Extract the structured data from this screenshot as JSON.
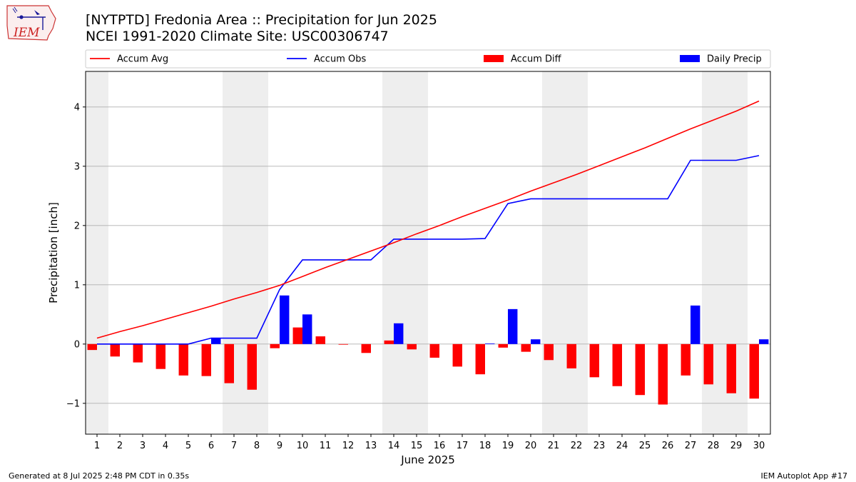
{
  "header": {
    "title_line1": "[NYTPTD] Fredonia Area :: Precipitation for Jun 2025",
    "title_line2": "NCEI 1991-2020 Climate Site: USC00306747",
    "logo_text": "IEM"
  },
  "footer": {
    "left": "Generated at 8 Jul 2025 2:48 PM CDT in 0.35s",
    "right": "IEM Autoplot App #17"
  },
  "colors": {
    "accum_avg": "#ff0000",
    "accum_obs": "#0000ff",
    "accum_diff": "#ff0000",
    "daily_precip": "#0000ff",
    "weekend_shade": "#eeeeee",
    "grid": "#b0b0b0"
  },
  "chart_data": {
    "type": "bar",
    "xlabel": "June 2025",
    "ylabel": "Precipitation [inch]",
    "ylim": [
      -1.52,
      4.6
    ],
    "yticks": [
      -1,
      0,
      1,
      2,
      3,
      4
    ],
    "ytick_labels": [
      "−1",
      "0",
      "1",
      "2",
      "3",
      "4"
    ],
    "grid": "horizontal",
    "legend_position": "top",
    "shaded_days": [
      1,
      7,
      8,
      14,
      15,
      21,
      22,
      28,
      29
    ],
    "days": [
      1,
      2,
      3,
      4,
      5,
      6,
      7,
      8,
      9,
      10,
      11,
      12,
      13,
      14,
      15,
      16,
      17,
      18,
      19,
      20,
      21,
      22,
      23,
      24,
      25,
      26,
      27,
      28,
      29,
      30
    ],
    "series": [
      {
        "name": "Accum Avg",
        "kind": "line",
        "values": [
          0.1,
          0.21,
          0.31,
          0.42,
          0.53,
          0.64,
          0.76,
          0.87,
          0.99,
          1.14,
          1.29,
          1.43,
          1.57,
          1.71,
          1.86,
          2.0,
          2.15,
          2.29,
          2.43,
          2.58,
          2.72,
          2.86,
          3.01,
          3.16,
          3.31,
          3.47,
          3.63,
          3.78,
          3.93,
          4.1
        ]
      },
      {
        "name": "Accum Obs",
        "kind": "line",
        "values": [
          0.0,
          0.0,
          0.0,
          0.0,
          0.0,
          0.1,
          0.1,
          0.1,
          0.92,
          1.42,
          1.42,
          1.42,
          1.42,
          1.77,
          1.77,
          1.77,
          1.77,
          1.78,
          2.37,
          2.45,
          2.45,
          2.45,
          2.45,
          2.45,
          2.45,
          2.45,
          3.1,
          3.1,
          3.1,
          3.18
        ]
      },
      {
        "name": "Accum Diff",
        "kind": "bar",
        "values": [
          -0.1,
          -0.21,
          -0.31,
          -0.42,
          -0.53,
          -0.54,
          -0.66,
          -0.77,
          -0.07,
          0.28,
          0.13,
          -0.01,
          -0.15,
          0.06,
          -0.09,
          -0.23,
          -0.38,
          -0.51,
          -0.06,
          -0.13,
          -0.27,
          -0.41,
          -0.56,
          -0.71,
          -0.86,
          -1.02,
          -0.53,
          -0.68,
          -0.83,
          -0.92
        ]
      },
      {
        "name": "Daily Precip",
        "kind": "bar",
        "values": [
          0,
          0,
          0,
          0,
          0,
          0.1,
          0,
          0,
          0.82,
          0.5,
          0,
          0,
          0,
          0.35,
          0,
          0,
          0,
          0.01,
          0.59,
          0.08,
          0,
          0,
          0,
          0,
          0,
          0,
          0.65,
          0,
          0,
          0.08
        ]
      }
    ]
  }
}
